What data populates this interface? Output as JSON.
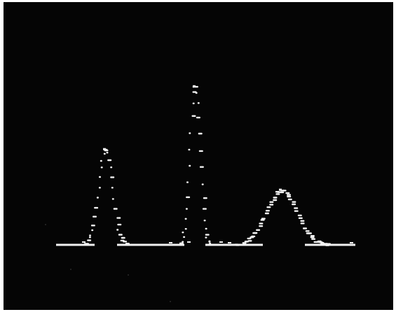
{
  "image": {
    "subject": "oscilloscope-trace",
    "background_color": "#050505",
    "trace_color": "#f2f2f2",
    "peaks": [
      {
        "name": "left-peak",
        "relative_height": 0.47
      },
      {
        "name": "center-peak",
        "relative_height": 0.78
      },
      {
        "name": "right-peak",
        "relative_height": 0.27
      }
    ]
  }
}
